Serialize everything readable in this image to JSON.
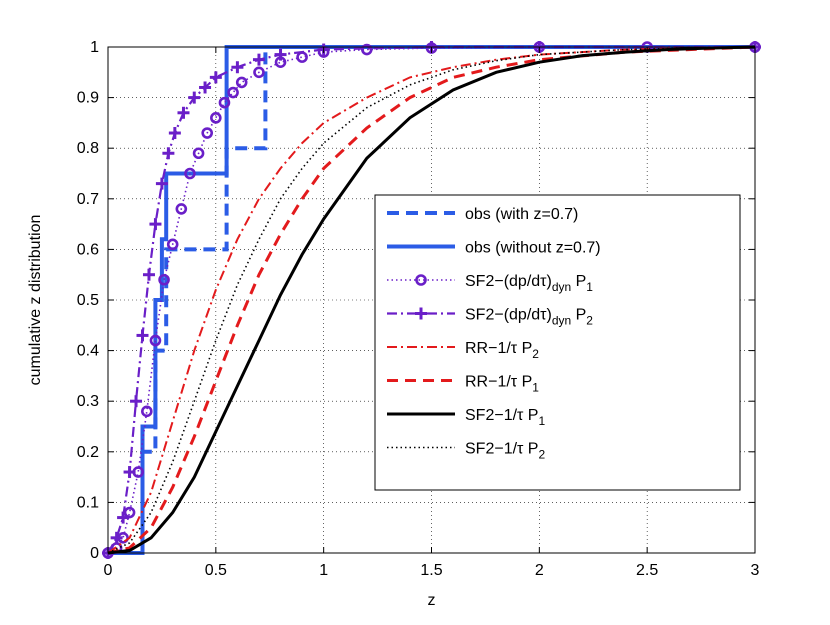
{
  "chart_data": {
    "type": "line",
    "title": "",
    "xlabel": "z",
    "ylabel": "cumulative z distribution",
    "xlim": [
      0,
      3
    ],
    "ylim": [
      0,
      1
    ],
    "xticks": [
      "0",
      "0.5",
      "1",
      "1.5",
      "2",
      "2.5",
      "3"
    ],
    "yticks": [
      "0",
      "0.1",
      "0.2",
      "0.3",
      "0.4",
      "0.5",
      "0.6",
      "0.7",
      "0.8",
      "0.9",
      "1"
    ],
    "grid": true,
    "legend_position": "center-right",
    "series": [
      {
        "name": "obs (with z=0.7)",
        "label_parts": {
          "base": "obs (with z=0.7)"
        },
        "style": "dashed-thick",
        "color": "#2b5ce6",
        "step": true,
        "x": [
          0,
          0.16,
          0.16,
          0.22,
          0.22,
          0.27,
          0.27,
          0.55,
          0.55,
          0.73,
          0.73,
          3
        ],
        "y": [
          0,
          0,
          0.2,
          0.2,
          0.4,
          0.4,
          0.6,
          0.6,
          0.8,
          0.8,
          1.0,
          1.0
        ]
      },
      {
        "name": "obs (without z=0.7)",
        "label_parts": {
          "base": "obs (without z=0.7)"
        },
        "style": "solid-thick",
        "color": "#2b5ce6",
        "step": true,
        "x": [
          0,
          0.16,
          0.16,
          0.22,
          0.22,
          0.25,
          0.25,
          0.27,
          0.27,
          0.55,
          0.55,
          3
        ],
        "y": [
          0,
          0,
          0.25,
          0.25,
          0.5,
          0.5,
          0.62,
          0.62,
          0.75,
          0.75,
          1.0,
          1.0
        ]
      },
      {
        "name": "SF2-(dp/dτ)dyn P1",
        "label_parts": {
          "base": "SF2−(dp/dτ)",
          "sub1": "dyn",
          "mid": " P",
          "sub2": "1"
        },
        "style": "dotted-circle",
        "color": "#6a1fc8",
        "x": [
          0,
          0.04,
          0.07,
          0.1,
          0.14,
          0.18,
          0.22,
          0.26,
          0.3,
          0.34,
          0.38,
          0.42,
          0.46,
          0.5,
          0.54,
          0.58,
          0.62,
          0.7,
          0.8,
          0.9,
          1.0,
          1.2,
          1.5,
          2.0,
          2.5,
          3.0
        ],
        "y": [
          0,
          0.01,
          0.03,
          0.08,
          0.16,
          0.28,
          0.42,
          0.54,
          0.61,
          0.68,
          0.75,
          0.79,
          0.83,
          0.86,
          0.89,
          0.91,
          0.93,
          0.95,
          0.97,
          0.98,
          0.99,
          0.995,
          0.998,
          1.0,
          1.0,
          1.0
        ]
      },
      {
        "name": "SF2-(dp/dτ)dyn P2",
        "label_parts": {
          "base": "SF2−(dp/dτ)",
          "sub1": "dyn",
          "mid": " P",
          "sub2": "2"
        },
        "style": "dashdot-plus",
        "color": "#6a1fc8",
        "x": [
          0,
          0.04,
          0.07,
          0.1,
          0.13,
          0.16,
          0.19,
          0.22,
          0.25,
          0.28,
          0.31,
          0.35,
          0.4,
          0.45,
          0.5,
          0.6,
          0.7,
          0.8,
          1.0,
          1.5,
          2.0,
          3.0
        ],
        "y": [
          0,
          0.03,
          0.07,
          0.16,
          0.3,
          0.43,
          0.55,
          0.65,
          0.73,
          0.79,
          0.83,
          0.87,
          0.9,
          0.92,
          0.94,
          0.96,
          0.975,
          0.985,
          0.995,
          1.0,
          1.0,
          1.0
        ]
      },
      {
        "name": "RR-1/τ P2",
        "label_parts": {
          "base": "RR−1/τ P",
          "sub2": "2"
        },
        "style": "dashdot",
        "color": "#e31a1c",
        "x": [
          0,
          0.1,
          0.2,
          0.3,
          0.4,
          0.5,
          0.6,
          0.7,
          0.8,
          0.9,
          1.0,
          1.2,
          1.4,
          1.6,
          1.8,
          2.0,
          2.4,
          3.0
        ],
        "y": [
          0,
          0.03,
          0.12,
          0.26,
          0.4,
          0.52,
          0.62,
          0.7,
          0.76,
          0.81,
          0.85,
          0.9,
          0.94,
          0.96,
          0.975,
          0.985,
          0.995,
          1.0
        ]
      },
      {
        "name": "RR-1/τ P1",
        "label_parts": {
          "base": "RR−1/τ P",
          "sub2": "1"
        },
        "style": "dashed",
        "color": "#e31a1c",
        "x": [
          0,
          0.1,
          0.2,
          0.3,
          0.4,
          0.5,
          0.6,
          0.7,
          0.8,
          0.9,
          1.0,
          1.2,
          1.4,
          1.6,
          1.8,
          2.0,
          2.4,
          3.0
        ],
        "y": [
          0,
          0.01,
          0.05,
          0.13,
          0.23,
          0.34,
          0.45,
          0.55,
          0.63,
          0.7,
          0.76,
          0.84,
          0.9,
          0.94,
          0.96,
          0.975,
          0.99,
          1.0
        ]
      },
      {
        "name": "SF2-1/τ P1",
        "label_parts": {
          "base": "SF2−1/τ P",
          "sub2": "1"
        },
        "style": "solid",
        "color": "#000000",
        "x": [
          0,
          0.1,
          0.2,
          0.3,
          0.4,
          0.5,
          0.6,
          0.7,
          0.8,
          0.9,
          1.0,
          1.2,
          1.4,
          1.6,
          1.8,
          2.0,
          2.2,
          2.4,
          2.6,
          2.8,
          3.0
        ],
        "y": [
          0,
          0.005,
          0.03,
          0.08,
          0.15,
          0.24,
          0.33,
          0.42,
          0.51,
          0.59,
          0.66,
          0.78,
          0.86,
          0.915,
          0.95,
          0.97,
          0.983,
          0.99,
          0.995,
          0.998,
          1.0
        ]
      },
      {
        "name": "SF2-1/τ P2",
        "label_parts": {
          "base": "SF2−1/τ P",
          "sub2": "2"
        },
        "style": "dotted",
        "color": "#000000",
        "x": [
          0,
          0.1,
          0.2,
          0.3,
          0.4,
          0.5,
          0.6,
          0.7,
          0.8,
          0.9,
          1.0,
          1.2,
          1.4,
          1.6,
          1.8,
          2.0,
          2.4,
          3.0
        ],
        "y": [
          0,
          0.02,
          0.08,
          0.18,
          0.3,
          0.42,
          0.53,
          0.62,
          0.7,
          0.76,
          0.81,
          0.88,
          0.925,
          0.955,
          0.973,
          0.985,
          0.995,
          1.0
        ]
      }
    ]
  }
}
